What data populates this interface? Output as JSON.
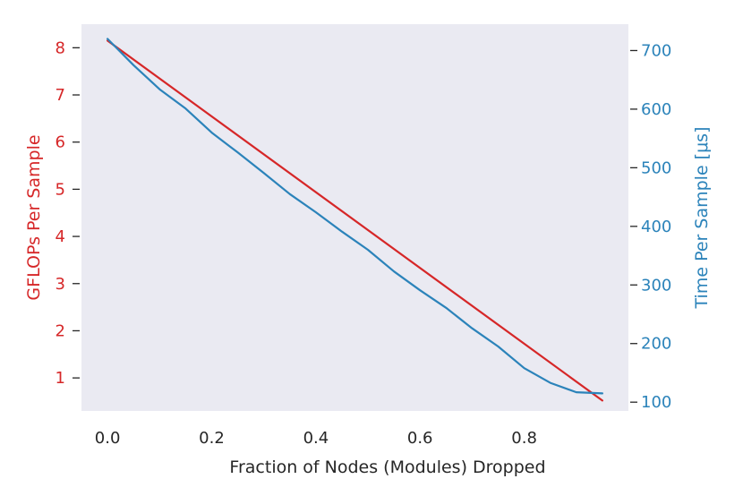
{
  "chart_data": {
    "type": "line",
    "xlabel": "Fraction of Nodes (Modules) Dropped",
    "ylabel_left": "GFLOPs Per Sample",
    "ylabel_right": "Time Per Sample [μs]",
    "xlim": [
      -0.05,
      1.0
    ],
    "ylim_left": [
      0.3,
      8.5
    ],
    "ylim_right": [
      85,
      745
    ],
    "x_ticks": [
      {
        "value": 0.0,
        "label": "0.0"
      },
      {
        "value": 0.2,
        "label": "0.2"
      },
      {
        "value": 0.4,
        "label": "0.4"
      },
      {
        "value": 0.6,
        "label": "0.6"
      },
      {
        "value": 0.8,
        "label": "0.8"
      }
    ],
    "y_left_ticks": [
      {
        "value": 1,
        "label": "1"
      },
      {
        "value": 2,
        "label": "2"
      },
      {
        "value": 3,
        "label": "3"
      },
      {
        "value": 4,
        "label": "4"
      },
      {
        "value": 5,
        "label": "5"
      },
      {
        "value": 6,
        "label": "6"
      },
      {
        "value": 7,
        "label": "7"
      },
      {
        "value": 8,
        "label": "8"
      }
    ],
    "y_right_ticks": [
      {
        "value": 100,
        "label": "100"
      },
      {
        "value": 200,
        "label": "200"
      },
      {
        "value": 300,
        "label": "300"
      },
      {
        "value": 400,
        "label": "400"
      },
      {
        "value": 500,
        "label": "500"
      },
      {
        "value": 600,
        "label": "600"
      },
      {
        "value": 700,
        "label": "700"
      }
    ],
    "grid": false,
    "series": [
      {
        "axis": "left",
        "color": "#d62728",
        "x": [
          0.0,
          0.95
        ],
        "y": [
          8.15,
          0.52
        ]
      },
      {
        "axis": "right",
        "color": "#2b83ba",
        "x": [
          0.0,
          0.05,
          0.1,
          0.15,
          0.2,
          0.25,
          0.3,
          0.35,
          0.4,
          0.45,
          0.5,
          0.55,
          0.6,
          0.65,
          0.7,
          0.75,
          0.8,
          0.85,
          0.9,
          0.95
        ],
        "y": [
          720,
          675,
          634,
          601,
          560,
          526,
          491,
          455,
          424,
          391,
          360,
          323,
          291,
          261,
          226,
          195,
          158,
          133,
          117,
          115
        ]
      }
    ],
    "colors": {
      "plot_background": "#eaeaf2",
      "left_axis": "#d62728",
      "right_axis": "#2b83ba",
      "x_axis_text": "#262626"
    }
  }
}
